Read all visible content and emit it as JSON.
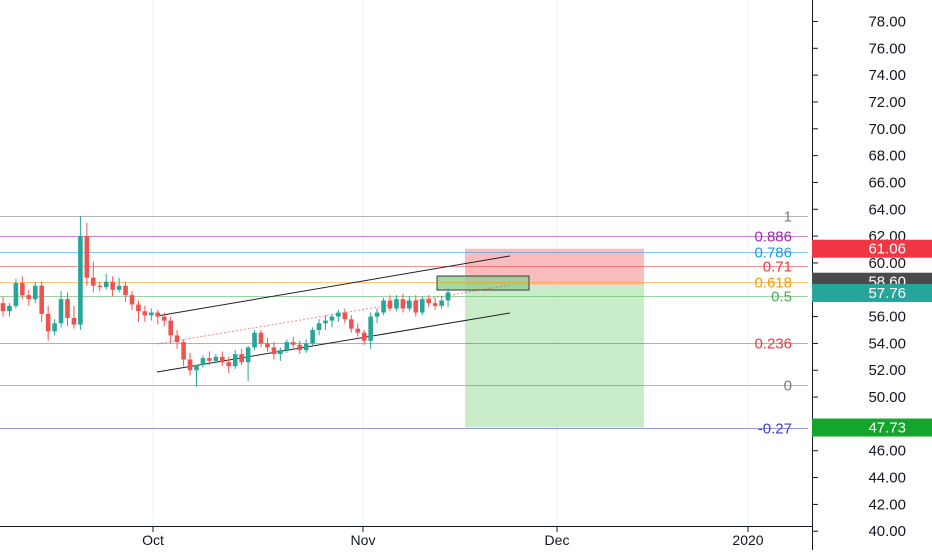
{
  "chart_data": {
    "type": "candlestick",
    "price_axis": {
      "ylim": [
        38.6,
        79.6
      ],
      "ticks": [
        "40.00",
        "42.00",
        "44.00",
        "46.00",
        "48.00",
        "50.00",
        "52.00",
        "54.00",
        "56.00",
        "58.00",
        "60.00",
        "62.00",
        "64.00",
        "66.00",
        "68.00",
        "70.00",
        "72.00",
        "74.00",
        "76.00",
        "78.00"
      ]
    },
    "time_axis": {
      "ticks": [
        "Oct",
        "Nov",
        "Dec",
        "2020"
      ]
    },
    "price_tags": [
      {
        "label": "61.06",
        "value": 61.06,
        "color": "#f23645",
        "text_color": "#ffffff"
      },
      {
        "label": "58.60",
        "value": 58.6,
        "color": "#4a4a4a",
        "text_color": "#ffffff"
      },
      {
        "label": "57.76",
        "value": 57.76,
        "color": "#26a69a",
        "text_color": "#ffffff"
      },
      {
        "label": "47.73",
        "value": 47.73,
        "color": "#14a52c",
        "text_color": "#ffffff"
      }
    ],
    "fib_levels": [
      {
        "label": "1",
        "value": 63.5,
        "color": "#787b86"
      },
      {
        "label": "0.886",
        "value": 62.0,
        "color": "#9c27b0"
      },
      {
        "label": "0.786",
        "value": 60.8,
        "color": "#2196f3"
      },
      {
        "label": "0.71",
        "value": 59.8,
        "color": "#f23645"
      },
      {
        "label": "0.618",
        "value": 58.6,
        "color": "#ff9800"
      },
      {
        "label": "0.5",
        "value": 57.5,
        "color": "#4caf50"
      },
      {
        "label": "0.236",
        "value": 54.0,
        "color": "#f23645"
      },
      {
        "label": "0",
        "value": 50.9,
        "color": "#787b86"
      },
      {
        "label": "-0.27",
        "value": 47.73,
        "color": "#3f3fc8"
      }
    ],
    "position": {
      "entry_low": 57.7,
      "entry_high": 58.8,
      "stop": 61.06,
      "target": 47.73,
      "loss_color": "#f8a5a5",
      "profit_color": "#a5dfa5"
    },
    "candles": [
      [
        57.0,
        57.5,
        56.0,
        56.4
      ],
      [
        56.4,
        57.0,
        56.0,
        56.8
      ],
      [
        56.8,
        58.8,
        56.6,
        58.5
      ],
      [
        58.5,
        59.0,
        57.3,
        57.6
      ],
      [
        57.6,
        58.0,
        56.8,
        57.3
      ],
      [
        57.3,
        58.6,
        57.0,
        58.3
      ],
      [
        58.3,
        58.6,
        55.6,
        56.2
      ],
      [
        56.2,
        56.8,
        54.2,
        54.9
      ],
      [
        54.9,
        55.8,
        54.6,
        55.5
      ],
      [
        55.5,
        57.9,
        55.2,
        57.3
      ],
      [
        57.3,
        57.8,
        55.3,
        55.9
      ],
      [
        55.9,
        56.8,
        55.1,
        55.4
      ],
      [
        55.4,
        63.5,
        55.0,
        62.0
      ],
      [
        62.0,
        63.0,
        58.3,
        58.9
      ],
      [
        58.9,
        60.1,
        57.8,
        58.3
      ],
      [
        58.3,
        58.6,
        57.9,
        58.2
      ],
      [
        58.2,
        59.2,
        58.0,
        58.6
      ],
      [
        58.6,
        59.0,
        57.5,
        58.0
      ],
      [
        58.0,
        58.9,
        57.8,
        58.3
      ],
      [
        58.3,
        58.6,
        57.1,
        57.6
      ],
      [
        57.6,
        57.9,
        56.5,
        56.9
      ],
      [
        56.9,
        57.2,
        55.6,
        56.4
      ],
      [
        56.4,
        56.8,
        55.6,
        56.1
      ],
      [
        56.1,
        56.6,
        55.7,
        56.3
      ],
      [
        56.3,
        56.5,
        55.4,
        56.0
      ],
      [
        56.0,
        56.3,
        55.3,
        55.7
      ],
      [
        55.7,
        56.0,
        54.0,
        54.6
      ],
      [
        54.6,
        55.0,
        53.6,
        54.1
      ],
      [
        54.1,
        54.3,
        52.3,
        52.8
      ],
      [
        52.8,
        53.3,
        51.6,
        52.0
      ],
      [
        52.0,
        52.4,
        50.8,
        52.4
      ],
      [
        52.4,
        53.1,
        52.2,
        52.9
      ],
      [
        52.9,
        53.4,
        52.4,
        52.7
      ],
      [
        52.7,
        53.2,
        52.5,
        53.0
      ],
      [
        53.0,
        53.4,
        52.3,
        52.6
      ],
      [
        52.6,
        53.0,
        51.8,
        52.3
      ],
      [
        52.3,
        53.5,
        52.1,
        53.2
      ],
      [
        53.2,
        53.6,
        52.4,
        52.6
      ],
      [
        52.6,
        53.8,
        51.2,
        53.7
      ],
      [
        53.7,
        55.0,
        53.5,
        54.8
      ],
      [
        54.8,
        55.0,
        53.7,
        54.0
      ],
      [
        54.0,
        54.4,
        53.4,
        53.7
      ],
      [
        53.7,
        54.1,
        52.8,
        53.2
      ],
      [
        53.2,
        53.7,
        52.7,
        53.5
      ],
      [
        53.5,
        54.3,
        53.3,
        54.1
      ],
      [
        54.1,
        54.5,
        53.5,
        53.9
      ],
      [
        53.9,
        54.2,
        53.2,
        53.5
      ],
      [
        53.5,
        54.3,
        53.3,
        54.0
      ],
      [
        54.0,
        55.2,
        53.8,
        55.0
      ],
      [
        55.0,
        55.8,
        54.6,
        55.5
      ],
      [
        55.5,
        56.1,
        55.0,
        55.7
      ],
      [
        55.7,
        56.2,
        55.2,
        56.0
      ],
      [
        56.0,
        56.5,
        55.6,
        56.3
      ],
      [
        56.3,
        56.6,
        55.5,
        55.8
      ],
      [
        55.8,
        56.1,
        54.8,
        55.1
      ],
      [
        55.1,
        55.5,
        54.5,
        54.8
      ],
      [
        54.8,
        55.0,
        53.9,
        54.2
      ],
      [
        54.2,
        56.3,
        53.6,
        56.0
      ],
      [
        56.0,
        56.6,
        55.5,
        56.3
      ],
      [
        56.3,
        57.4,
        56.1,
        57.2
      ],
      [
        57.2,
        57.6,
        56.4,
        56.6
      ],
      [
        56.6,
        57.6,
        56.4,
        57.3
      ],
      [
        57.3,
        57.7,
        56.3,
        56.6
      ],
      [
        56.6,
        57.5,
        56.4,
        57.2
      ],
      [
        57.2,
        57.6,
        56.0,
        56.3
      ],
      [
        56.3,
        57.5,
        56.1,
        57.3
      ],
      [
        57.3,
        57.6,
        56.7,
        57.0
      ],
      [
        57.0,
        57.4,
        56.5,
        56.8
      ],
      [
        56.8,
        57.5,
        56.6,
        57.2
      ],
      [
        57.2,
        58.1,
        56.7,
        57.8
      ]
    ]
  }
}
